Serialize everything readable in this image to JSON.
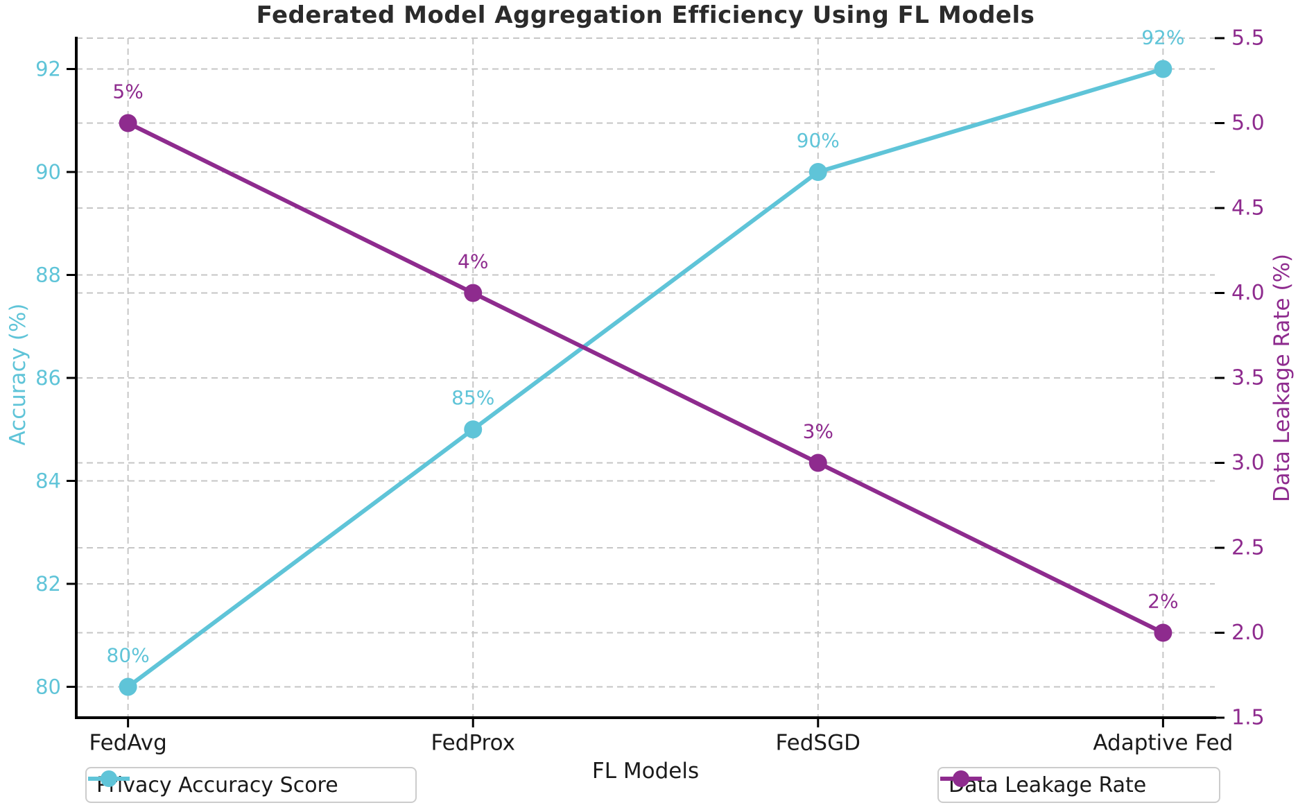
{
  "chart_data": {
    "type": "line",
    "title": "Federated Model Aggregation Efficiency Using FL Models",
    "xlabel": "FL Models",
    "categories": [
      "FedAvg",
      "FedProx",
      "FedSGD",
      "Adaptive Fed"
    ],
    "series": [
      {
        "name": "Privacy Accuracy Score",
        "axis": "left",
        "values": [
          80,
          85,
          90,
          92
        ],
        "point_labels": [
          "80%",
          "85%",
          "90%",
          "92%"
        ],
        "color": "#5fc4d8"
      },
      {
        "name": "Data Leakage Rate",
        "axis": "right",
        "values": [
          5,
          4,
          3,
          2
        ],
        "point_labels": [
          "5%",
          "4%",
          "3%",
          "2%"
        ],
        "color": "#8e2b8e"
      }
    ],
    "left_axis": {
      "label": "Accuracy (%)",
      "ticks": [
        80,
        82,
        84,
        86,
        88,
        90,
        92
      ],
      "tick_labels": [
        "80",
        "82",
        "84",
        "86",
        "88",
        "90",
        "92"
      ],
      "lim": [
        79.4,
        92.6
      ],
      "color": "#5fc4d8"
    },
    "right_axis": {
      "label": "Data Leakage Rate (%)",
      "ticks": [
        1.5,
        2.0,
        2.5,
        3.0,
        3.5,
        4.0,
        4.5,
        5.0,
        5.5
      ],
      "tick_labels": [
        "1.5",
        "2.0",
        "2.5",
        "3.0",
        "3.5",
        "4.0",
        "4.5",
        "5.0",
        "5.5"
      ],
      "lim": [
        1.5,
        5.5
      ],
      "color": "#8e2b8e"
    },
    "grid": true,
    "grid_color": "#c6c6c6",
    "spine_color": "#000000",
    "legend_position": "bottom",
    "x_tick_color": "#1a1a1a"
  },
  "legend": {
    "items": [
      {
        "label": "Privacy Accuracy Score",
        "color": "#5fc4d8"
      },
      {
        "label": "Data Leakage Rate",
        "color": "#8e2b8e"
      }
    ]
  }
}
